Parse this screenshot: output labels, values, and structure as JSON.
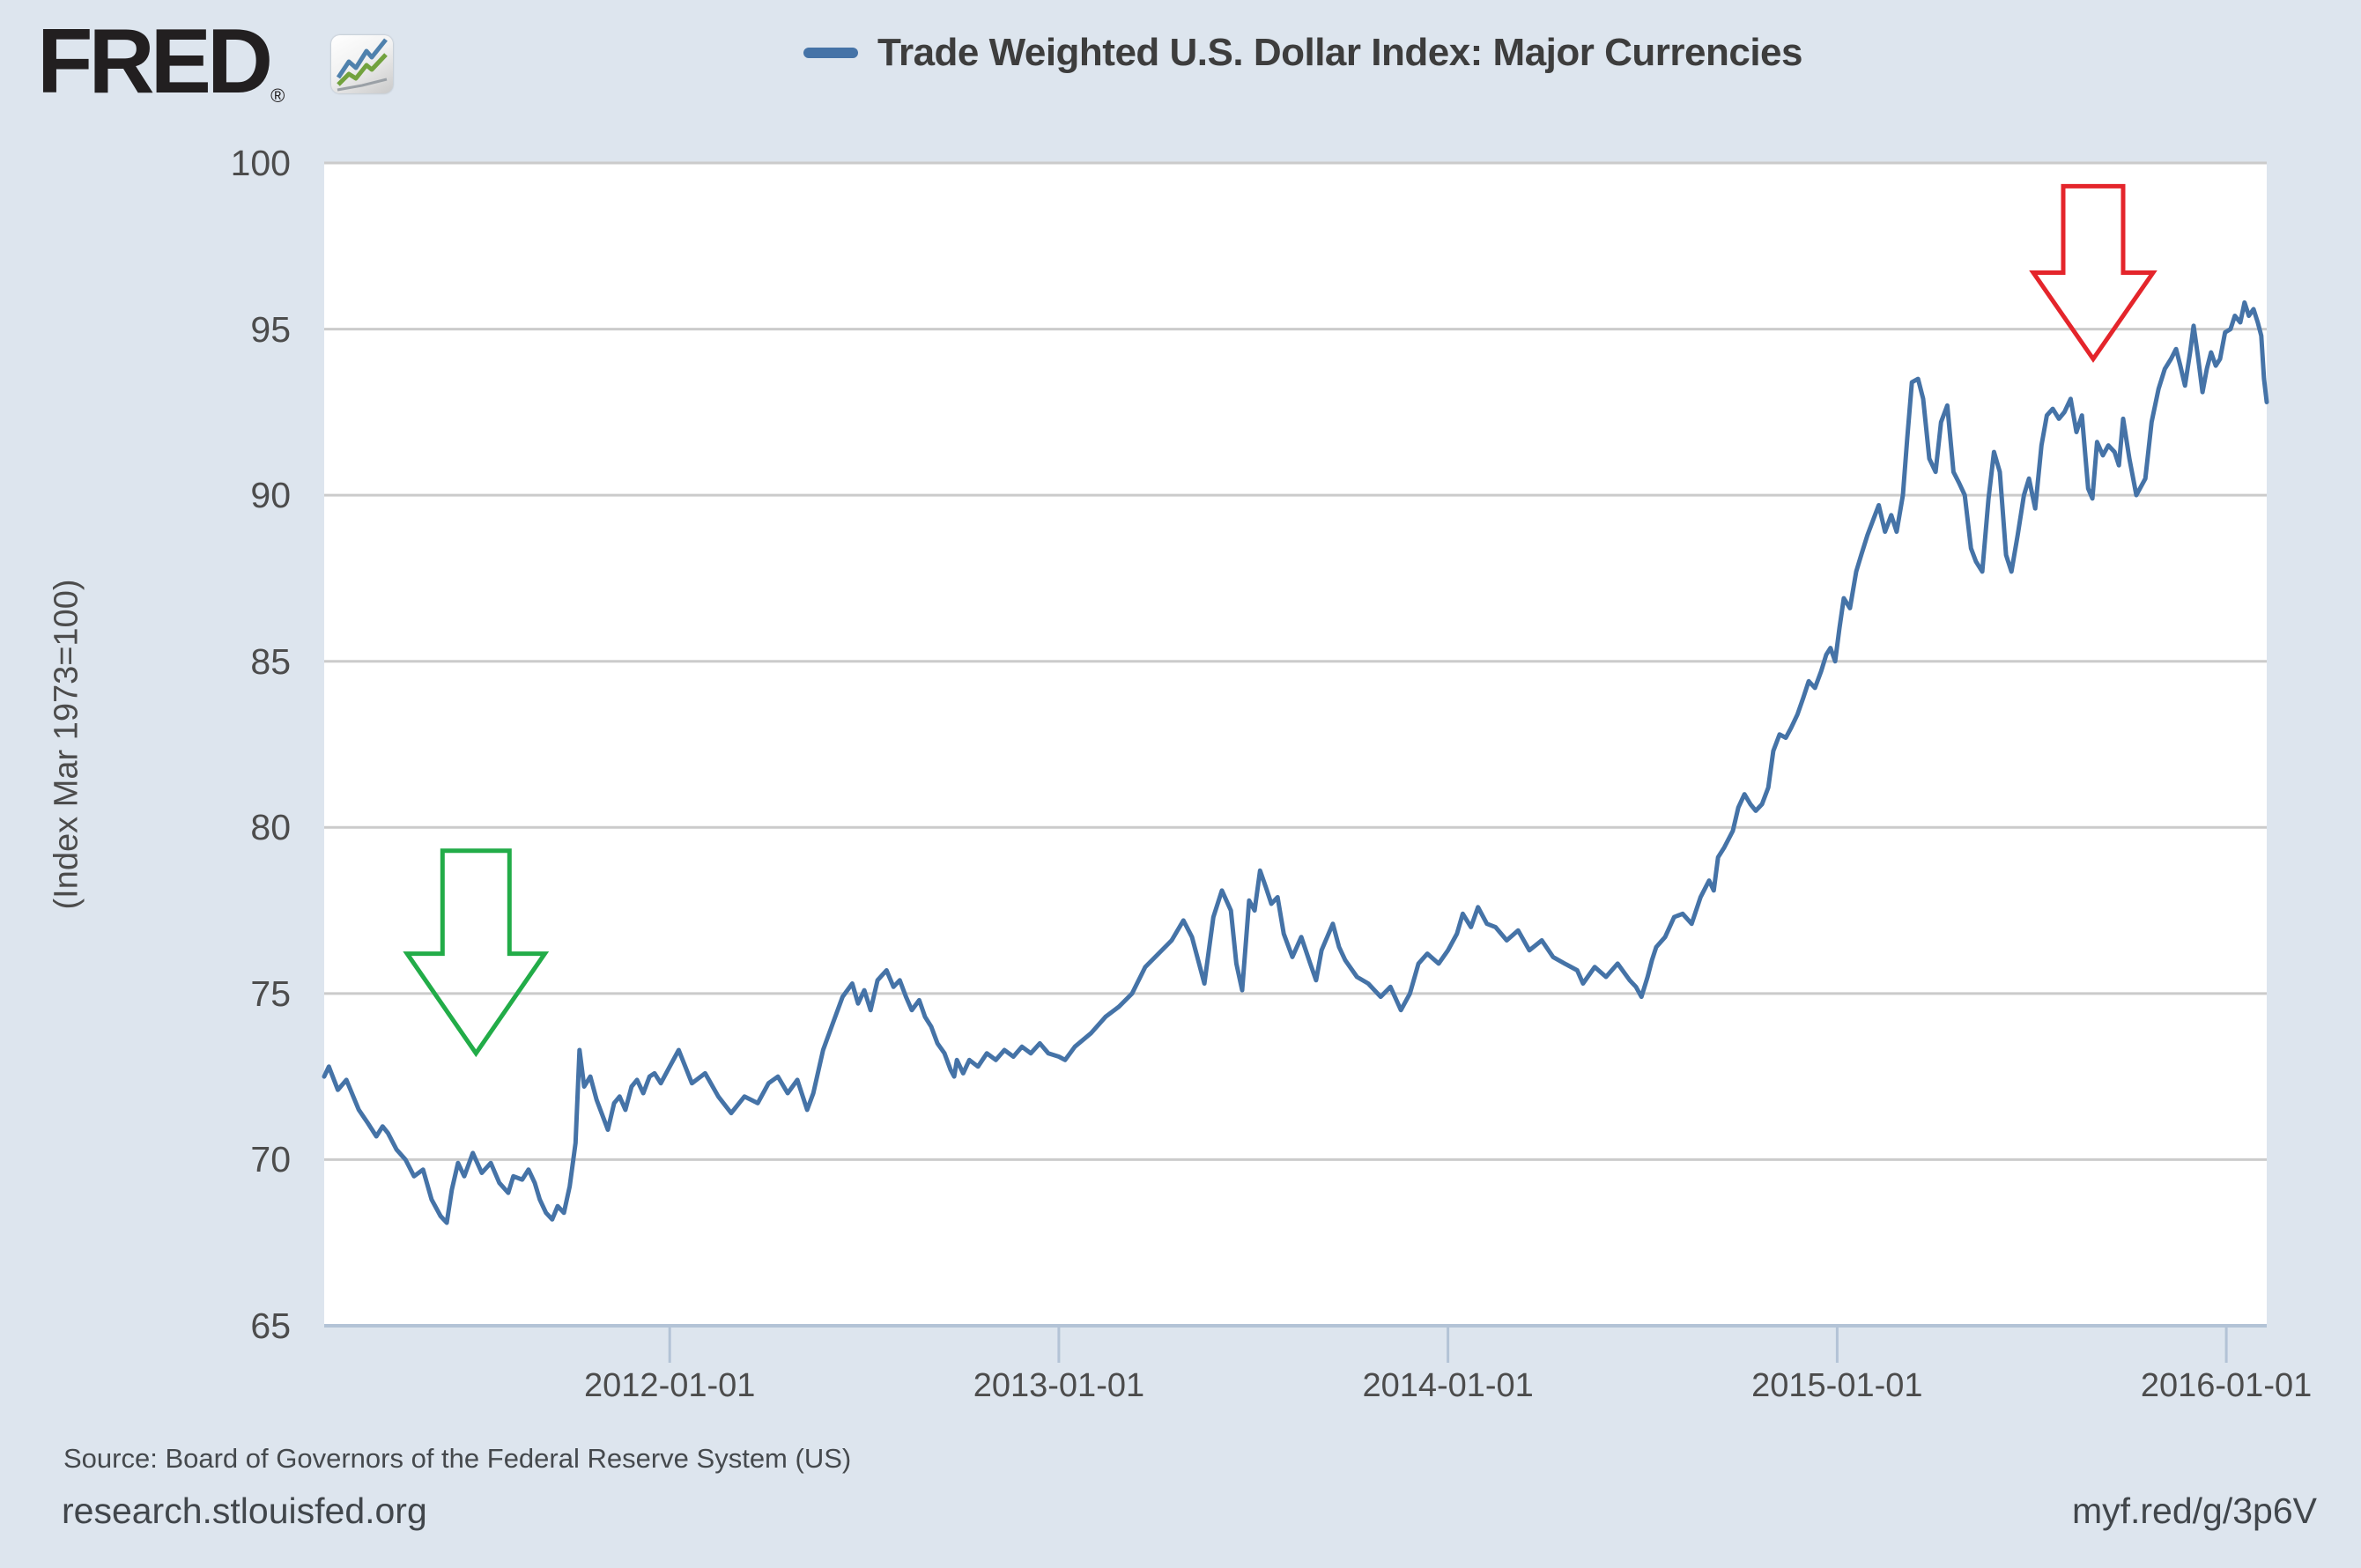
{
  "page": {
    "background": "#dde5ee"
  },
  "brand": {
    "wordmark": "FRED",
    "registered_mark": "®",
    "icon": "fred-zigzag-chart-icon",
    "icon_colors": {
      "blue": "#4f81ad",
      "green": "#72a23e",
      "gray": "#9aa0a6"
    }
  },
  "legend": {
    "swatch_color": "#4573a7",
    "label": "Trade Weighted U.S. Dollar Index: Major Currencies"
  },
  "footer": {
    "source": "Source: Board of Governors of the Federal Reserve System (US)",
    "site": "research.stlouisfed.org",
    "short_url": "myf.red/g/3p6V"
  },
  "chart_data": {
    "type": "line",
    "title": "Trade Weighted U.S. Dollar Index: Major Currencies",
    "ylabel": "(Index Mar 1973=100)",
    "ylim": [
      65,
      100
    ],
    "xlim_years": [
      2011.112,
      2016.104
    ],
    "grid": "horizontal",
    "grid_color": "#cbcbcb",
    "axis_color": "#b3c3d6",
    "line_color": "#4573a7",
    "legend_position": "top-center",
    "y_ticks": [
      100,
      95,
      90,
      85,
      80,
      75,
      70,
      65
    ],
    "x_ticks": [
      {
        "year": 2012,
        "label": "2012-01-01"
      },
      {
        "year": 2013,
        "label": "2013-01-01"
      },
      {
        "year": 2014,
        "label": "2014-01-01"
      },
      {
        "year": 2015,
        "label": "2015-01-01"
      },
      {
        "year": 2016,
        "label": "2016-01-01"
      }
    ],
    "series": [
      {
        "name": "Trade Weighted U.S. Dollar Index: Major Currencies",
        "points": [
          [
            2011.112,
            72.5
          ],
          [
            2011.124,
            72.8
          ],
          [
            2011.147,
            72.1
          ],
          [
            2011.169,
            72.4
          ],
          [
            2011.201,
            71.5
          ],
          [
            2011.224,
            71.1
          ],
          [
            2011.246,
            70.7
          ],
          [
            2011.262,
            71.0
          ],
          [
            2011.276,
            70.8
          ],
          [
            2011.298,
            70.3
          ],
          [
            2011.321,
            70.0
          ],
          [
            2011.343,
            69.5
          ],
          [
            2011.366,
            69.7
          ],
          [
            2011.388,
            68.8
          ],
          [
            2011.411,
            68.3
          ],
          [
            2011.427,
            68.1
          ],
          [
            2011.44,
            69.1
          ],
          [
            2011.456,
            69.9
          ],
          [
            2011.472,
            69.5
          ],
          [
            2011.494,
            70.2
          ],
          [
            2011.517,
            69.6
          ],
          [
            2011.54,
            69.9
          ],
          [
            2011.562,
            69.3
          ],
          [
            2011.585,
            69.0
          ],
          [
            2011.598,
            69.5
          ],
          [
            2011.621,
            69.4
          ],
          [
            2011.637,
            69.7
          ],
          [
            2011.653,
            69.3
          ],
          [
            2011.666,
            68.8
          ],
          [
            2011.682,
            68.4
          ],
          [
            2011.698,
            68.2
          ],
          [
            2011.712,
            68.6
          ],
          [
            2011.728,
            68.4
          ],
          [
            2011.743,
            69.2
          ],
          [
            2011.758,
            70.5
          ],
          [
            2011.768,
            73.3
          ],
          [
            2011.78,
            72.2
          ],
          [
            2011.796,
            72.5
          ],
          [
            2011.812,
            71.8
          ],
          [
            2011.825,
            71.4
          ],
          [
            2011.841,
            70.9
          ],
          [
            2011.857,
            71.7
          ],
          [
            2011.871,
            71.9
          ],
          [
            2011.886,
            71.5
          ],
          [
            2011.902,
            72.2
          ],
          [
            2011.916,
            72.4
          ],
          [
            2011.932,
            72.0
          ],
          [
            2011.948,
            72.5
          ],
          [
            2011.961,
            72.6
          ],
          [
            2011.977,
            72.3
          ],
          [
            2012.0,
            72.8
          ],
          [
            2012.023,
            73.3
          ],
          [
            2012.057,
            72.3
          ],
          [
            2012.091,
            72.6
          ],
          [
            2012.125,
            71.9
          ],
          [
            2012.158,
            71.4
          ],
          [
            2012.192,
            71.9
          ],
          [
            2012.226,
            71.7
          ],
          [
            2012.254,
            72.3
          ],
          [
            2012.278,
            72.5
          ],
          [
            2012.303,
            72.0
          ],
          [
            2012.328,
            72.4
          ],
          [
            2012.353,
            71.5
          ],
          [
            2012.369,
            72.0
          ],
          [
            2012.394,
            73.3
          ],
          [
            2012.419,
            74.1
          ],
          [
            2012.444,
            74.9
          ],
          [
            2012.469,
            75.3
          ],
          [
            2012.484,
            74.7
          ],
          [
            2012.5,
            75.1
          ],
          [
            2012.516,
            74.5
          ],
          [
            2012.534,
            75.4
          ],
          [
            2012.557,
            75.7
          ],
          [
            2012.575,
            75.2
          ],
          [
            2012.591,
            75.4
          ],
          [
            2012.607,
            74.9
          ],
          [
            2012.622,
            74.5
          ],
          [
            2012.641,
            74.8
          ],
          [
            2012.656,
            74.3
          ],
          [
            2012.672,
            74.0
          ],
          [
            2012.688,
            73.5
          ],
          [
            2012.706,
            73.2
          ],
          [
            2012.722,
            72.7
          ],
          [
            2012.731,
            72.5
          ],
          [
            2012.738,
            73.0
          ],
          [
            2012.754,
            72.6
          ],
          [
            2012.77,
            73.0
          ],
          [
            2012.792,
            72.8
          ],
          [
            2012.815,
            73.2
          ],
          [
            2012.838,
            73.0
          ],
          [
            2012.86,
            73.3
          ],
          [
            2012.883,
            73.1
          ],
          [
            2012.905,
            73.4
          ],
          [
            2012.928,
            73.2
          ],
          [
            2012.951,
            73.5
          ],
          [
            2012.973,
            73.2
          ],
          [
            2013.0,
            73.1
          ],
          [
            2013.016,
            73.0
          ],
          [
            2013.041,
            73.4
          ],
          [
            2013.082,
            73.8
          ],
          [
            2013.12,
            74.3
          ],
          [
            2013.154,
            74.6
          ],
          [
            2013.188,
            75.0
          ],
          [
            2013.222,
            75.8
          ],
          [
            2013.256,
            76.2
          ],
          [
            2013.29,
            76.6
          ],
          [
            2013.32,
            77.2
          ],
          [
            2013.342,
            76.7
          ],
          [
            2013.374,
            75.3
          ],
          [
            2013.397,
            77.3
          ],
          [
            2013.419,
            78.1
          ],
          [
            2013.442,
            77.5
          ],
          [
            2013.456,
            75.9
          ],
          [
            2013.471,
            75.1
          ],
          [
            2013.489,
            77.8
          ],
          [
            2013.503,
            77.5
          ],
          [
            2013.517,
            78.7
          ],
          [
            2013.532,
            78.2
          ],
          [
            2013.546,
            77.7
          ],
          [
            2013.562,
            77.9
          ],
          [
            2013.578,
            76.8
          ],
          [
            2013.6,
            76.1
          ],
          [
            2013.623,
            76.7
          ],
          [
            2013.646,
            75.9
          ],
          [
            2013.661,
            75.4
          ],
          [
            2013.675,
            76.3
          ],
          [
            2013.704,
            77.1
          ],
          [
            2013.72,
            76.4
          ],
          [
            2013.736,
            76.0
          ],
          [
            2013.766,
            75.5
          ],
          [
            2013.795,
            75.3
          ],
          [
            2013.827,
            74.9
          ],
          [
            2013.852,
            75.2
          ],
          [
            2013.879,
            74.5
          ],
          [
            2013.902,
            75.0
          ],
          [
            2013.924,
            75.9
          ],
          [
            2013.947,
            76.2
          ],
          [
            2013.976,
            75.9
          ],
          [
            2014.0,
            76.3
          ],
          [
            2014.023,
            76.8
          ],
          [
            2014.038,
            77.4
          ],
          [
            2014.059,
            77.0
          ],
          [
            2014.077,
            77.6
          ],
          [
            2014.1,
            77.1
          ],
          [
            2014.122,
            77.0
          ],
          [
            2014.151,
            76.6
          ],
          [
            2014.18,
            76.9
          ],
          [
            2014.209,
            76.3
          ],
          [
            2014.241,
            76.6
          ],
          [
            2014.27,
            76.1
          ],
          [
            2014.3,
            75.9
          ],
          [
            2014.332,
            75.7
          ],
          [
            2014.347,
            75.3
          ],
          [
            2014.377,
            75.8
          ],
          [
            2014.406,
            75.5
          ],
          [
            2014.436,
            75.9
          ],
          [
            2014.467,
            75.4
          ],
          [
            2014.483,
            75.2
          ],
          [
            2014.497,
            74.9
          ],
          [
            2014.513,
            75.5
          ],
          [
            2014.524,
            76.0
          ],
          [
            2014.535,
            76.4
          ],
          [
            2014.558,
            76.7
          ],
          [
            2014.581,
            77.3
          ],
          [
            2014.603,
            77.4
          ],
          [
            2014.626,
            77.1
          ],
          [
            2014.649,
            77.9
          ],
          [
            2014.671,
            78.4
          ],
          [
            2014.683,
            78.1
          ],
          [
            2014.694,
            79.1
          ],
          [
            2014.71,
            79.4
          ],
          [
            2014.732,
            79.9
          ],
          [
            2014.746,
            80.6
          ],
          [
            2014.762,
            81.0
          ],
          [
            2014.777,
            80.7
          ],
          [
            2014.791,
            80.5
          ],
          [
            2014.807,
            80.7
          ],
          [
            2014.823,
            81.2
          ],
          [
            2014.836,
            82.3
          ],
          [
            2014.852,
            82.8
          ],
          [
            2014.868,
            82.7
          ],
          [
            2014.882,
            83.0
          ],
          [
            2014.898,
            83.4
          ],
          [
            2014.913,
            83.9
          ],
          [
            2014.927,
            84.4
          ],
          [
            2014.943,
            84.2
          ],
          [
            2014.959,
            84.7
          ],
          [
            2014.972,
            85.2
          ],
          [
            2014.983,
            85.4
          ],
          [
            2014.995,
            85.0
          ],
          [
            2015.006,
            86.0
          ],
          [
            2015.017,
            86.9
          ],
          [
            2015.033,
            86.6
          ],
          [
            2015.049,
            87.7
          ],
          [
            2015.062,
            88.2
          ],
          [
            2015.078,
            88.8
          ],
          [
            2015.094,
            89.3
          ],
          [
            2015.107,
            89.7
          ],
          [
            2015.123,
            88.9
          ],
          [
            2015.139,
            89.4
          ],
          [
            2015.153,
            88.9
          ],
          [
            2015.169,
            90.0
          ],
          [
            2015.18,
            91.7
          ],
          [
            2015.192,
            93.4
          ],
          [
            2015.208,
            93.5
          ],
          [
            2015.221,
            92.9
          ],
          [
            2015.237,
            91.1
          ],
          [
            2015.253,
            90.7
          ],
          [
            2015.267,
            92.2
          ],
          [
            2015.283,
            92.7
          ],
          [
            2015.299,
            90.7
          ],
          [
            2015.312,
            90.4
          ],
          [
            2015.328,
            90.0
          ],
          [
            2015.344,
            88.4
          ],
          [
            2015.357,
            88.0
          ],
          [
            2015.373,
            87.7
          ],
          [
            2015.389,
            89.9
          ],
          [
            2015.403,
            91.3
          ],
          [
            2015.418,
            90.7
          ],
          [
            2015.434,
            88.2
          ],
          [
            2015.448,
            87.7
          ],
          [
            2015.464,
            88.8
          ],
          [
            2015.48,
            90.0
          ],
          [
            2015.493,
            90.5
          ],
          [
            2015.509,
            89.6
          ],
          [
            2015.525,
            91.5
          ],
          [
            2015.539,
            92.4
          ],
          [
            2015.554,
            92.6
          ],
          [
            2015.57,
            92.3
          ],
          [
            2015.584,
            92.5
          ],
          [
            2015.6,
            92.9
          ],
          [
            2015.615,
            91.9
          ],
          [
            2015.629,
            92.4
          ],
          [
            2015.645,
            90.2
          ],
          [
            2015.656,
            89.9
          ],
          [
            2015.668,
            91.6
          ],
          [
            2015.683,
            91.2
          ],
          [
            2015.697,
            91.5
          ],
          [
            2015.713,
            91.3
          ],
          [
            2015.724,
            90.9
          ],
          [
            2015.735,
            92.3
          ],
          [
            2015.751,
            91.1
          ],
          [
            2015.769,
            90.0
          ],
          [
            2015.792,
            90.5
          ],
          [
            2015.808,
            92.2
          ],
          [
            2015.826,
            93.2
          ],
          [
            2015.842,
            93.8
          ],
          [
            2015.858,
            94.1
          ],
          [
            2015.871,
            94.4
          ],
          [
            2015.882,
            93.9
          ],
          [
            2015.894,
            93.3
          ],
          [
            2015.907,
            94.3
          ],
          [
            2015.916,
            95.1
          ],
          [
            2015.927,
            94.2
          ],
          [
            2015.939,
            93.1
          ],
          [
            2015.95,
            93.8
          ],
          [
            2015.961,
            94.3
          ],
          [
            2015.973,
            93.9
          ],
          [
            2015.984,
            94.1
          ],
          [
            2015.997,
            94.9
          ],
          [
            2016.011,
            95.0
          ],
          [
            2016.022,
            95.4
          ],
          [
            2016.036,
            95.2
          ],
          [
            2016.047,
            95.8
          ],
          [
            2016.058,
            95.4
          ],
          [
            2016.07,
            95.6
          ],
          [
            2016.081,
            95.2
          ],
          [
            2016.09,
            94.8
          ],
          [
            2016.097,
            93.5
          ],
          [
            2016.104,
            92.8
          ]
        ]
      }
    ],
    "annotations": [
      {
        "name": "green-down-arrow",
        "shape": "down-arrow-outline",
        "color": "#22ac48",
        "x_year": 2011.502,
        "top_value": 79.3,
        "junction_value": 76.2,
        "tip_value": 73.2,
        "half_shaft_years": 0.086,
        "half_head_years": 0.177
      },
      {
        "name": "red-down-arrow",
        "shape": "down-arrow-outline",
        "color": "#e4252b",
        "x_year": 2015.658,
        "top_value": 99.3,
        "junction_value": 96.7,
        "tip_value": 94.1,
        "half_shaft_years": 0.077,
        "half_head_years": 0.154
      }
    ]
  }
}
